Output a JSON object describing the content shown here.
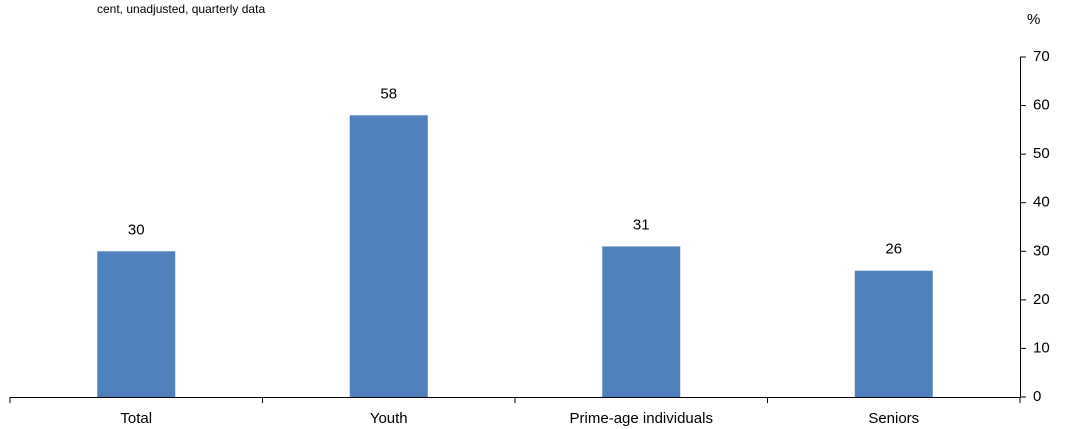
{
  "chart_data": {
    "type": "bar",
    "subtitle": "cent, unadjusted, quarterly data",
    "y_unit": "%",
    "categories": [
      "Total",
      "Youth",
      "Prime-age individuals",
      "Seniors"
    ],
    "values": [
      30,
      58,
      31,
      26
    ],
    "color": "#4f81bd",
    "ylim": [
      0,
      70
    ],
    "yticks": [
      0,
      10,
      20,
      30,
      40,
      50,
      60,
      70
    ],
    "y_axis_side": "right",
    "data_labels": true
  }
}
